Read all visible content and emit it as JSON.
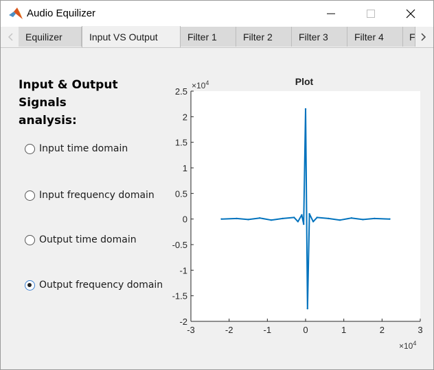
{
  "window": {
    "title": "Audio Equilizer",
    "icons": {
      "app": "matlab-logo-icon",
      "minimize": "minimize-icon",
      "maximize": "maximize-icon",
      "close": "close-icon"
    }
  },
  "tabs": {
    "items": [
      "Equilizer",
      "Input VS Output",
      "Filter 1",
      "Filter 2",
      "Filter 3",
      "Filter 4",
      "F"
    ],
    "active": "Input VS Output",
    "scroll_left_icon": "chevron-left-icon",
    "scroll_right_icon": "chevron-right-icon"
  },
  "panel": {
    "heading_line1": "Input & Output Signals",
    "heading_line2": "analysis:",
    "options": [
      {
        "label": "Input time domain",
        "selected": false
      },
      {
        "label": "Input frequency domain",
        "selected": false
      },
      {
        "label": "Output time domain",
        "selected": false
      },
      {
        "label": "Output frequency domain",
        "selected": true
      }
    ]
  },
  "colors": {
    "plot_line": "#0072bd",
    "selected_radio_border": "#3c7fd0"
  },
  "chart_data": {
    "type": "line",
    "title": "Plot",
    "xlabel": "",
    "ylabel": "",
    "x_exponent_label": "×10",
    "x_exponent_power": "4",
    "y_exponent_label": "×10",
    "y_exponent_power": "4",
    "xlim": [
      -3,
      3
    ],
    "ylim": [
      -2,
      2.5
    ],
    "x_ticks": [
      -3,
      -2,
      -1,
      0,
      1,
      2,
      3
    ],
    "x_tick_labels": [
      "-3",
      "-2",
      "-1",
      "0",
      "1",
      "2",
      "3"
    ],
    "y_ticks": [
      -2,
      -1.5,
      -1,
      -0.5,
      0,
      0.5,
      1,
      1.5,
      2,
      2.5
    ],
    "y_tick_labels": [
      "-2",
      "-1.5",
      "-1",
      "-0.5",
      "0",
      "0.5",
      "1",
      "1.5",
      "2",
      "2.5"
    ],
    "grid": false,
    "series": [
      {
        "x": [
          -2.2,
          -1.8,
          -1.5,
          -1.2,
          -0.9,
          -0.6,
          -0.3,
          -0.2,
          -0.1,
          -0.05,
          0,
          0.05,
          0.1,
          0.2,
          0.3,
          0.6,
          0.9,
          1.2,
          1.5,
          1.8,
          2.2
        ],
        "y": [
          0,
          0.01,
          -0.01,
          0.02,
          -0.02,
          0.01,
          0.03,
          -0.05,
          0.08,
          -0.1,
          2.15,
          -1.75,
          0.1,
          -0.05,
          0.03,
          0.01,
          -0.02,
          0.02,
          -0.01,
          0.01,
          0
        ]
      }
    ]
  }
}
